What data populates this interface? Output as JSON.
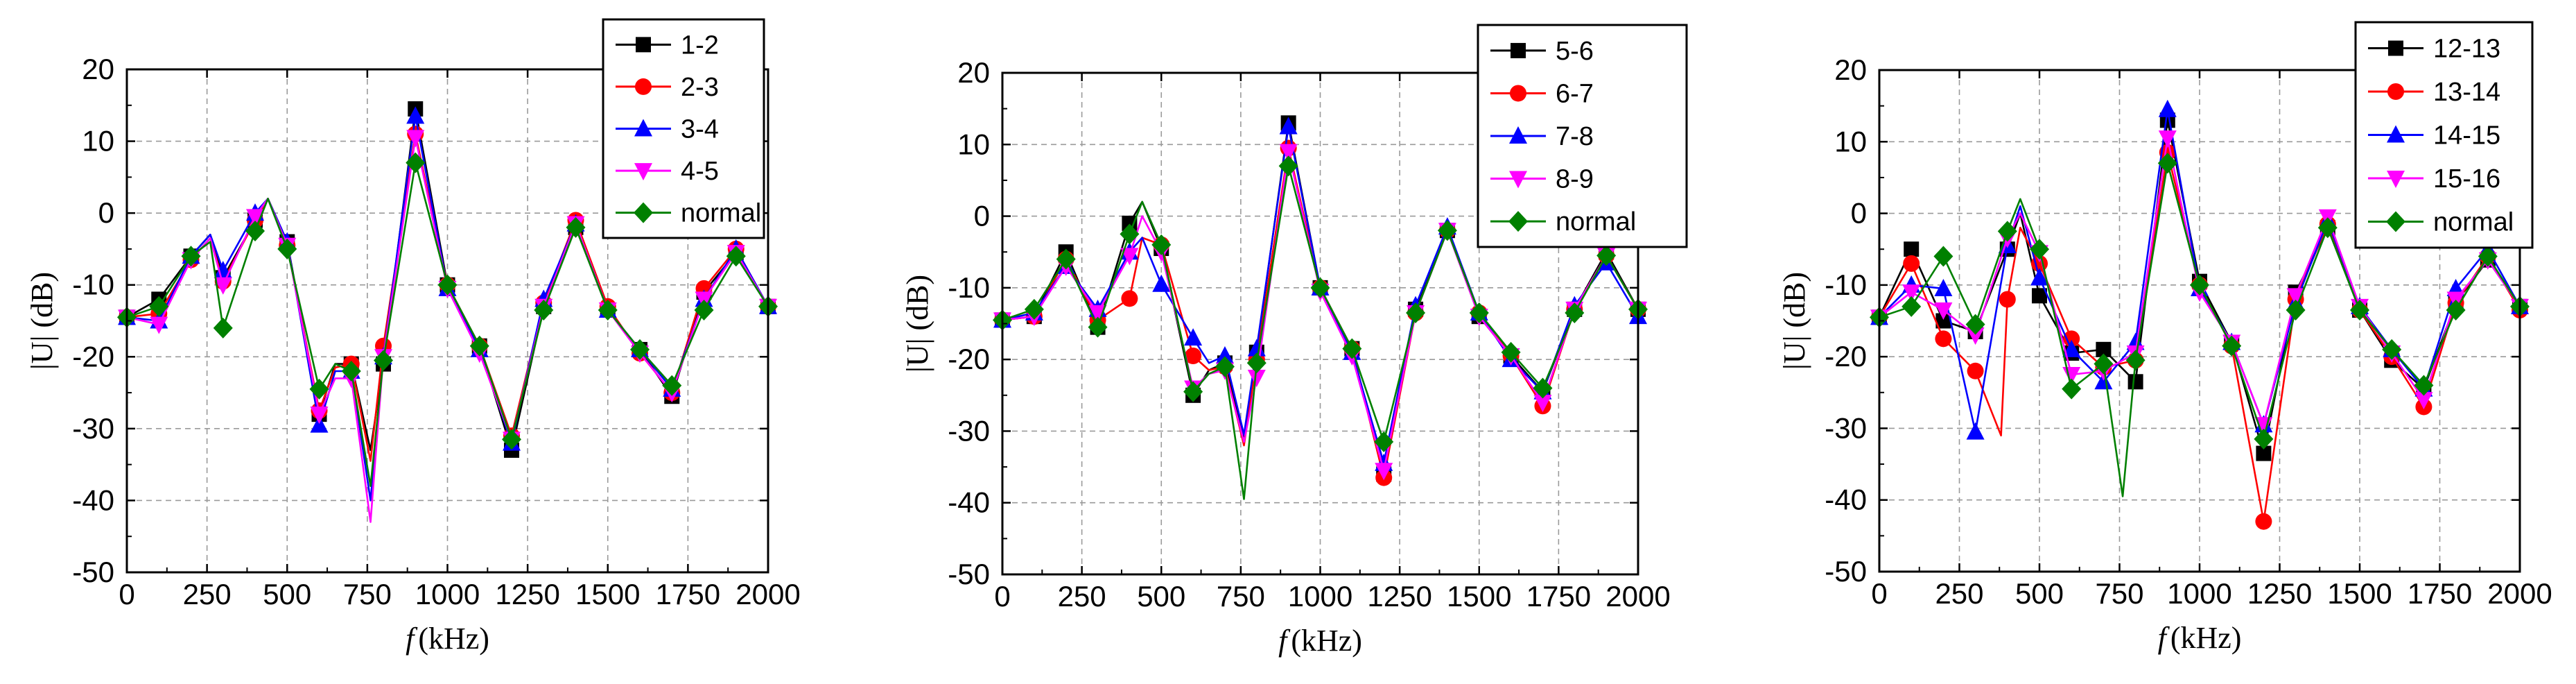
{
  "figure": {
    "panel_count": 3
  },
  "chart_data": [
    {
      "type": "line",
      "title": "",
      "xlabel_italic": "f",
      "xlabel_rest": "(kHz)",
      "ylabel": "|U| (dB)",
      "xlim": [
        0,
        2000
      ],
      "ylim": [
        -50,
        20
      ],
      "xticks": [
        0,
        250,
        500,
        750,
        1000,
        1250,
        1500,
        1750,
        2000
      ],
      "yticks": [
        -50,
        -40,
        -30,
        -20,
        -10,
        0,
        10,
        20
      ],
      "grid": true,
      "legend_position": "top-right",
      "series": [
        {
          "name": "1-2",
          "color": "#000000",
          "marker": "square",
          "x": [
            0,
            100,
            200,
            260,
            300,
            400,
            440,
            500,
            600,
            650,
            700,
            760,
            800,
            900,
            1000,
            1100,
            1200,
            1300,
            1400,
            1500,
            1600,
            1700,
            1800,
            1900,
            2000
          ],
          "y": [
            -14.5,
            -12,
            -6,
            -3,
            -9,
            -1,
            2,
            -4,
            -28,
            -21,
            -21,
            -33,
            -21,
            14.5,
            -10,
            -18.5,
            -33,
            -13,
            -2,
            -13.5,
            -19,
            -25.5,
            -11,
            -5.5,
            -13
          ]
        },
        {
          "name": "2-3",
          "color": "#ff0000",
          "marker": "circle",
          "x": [
            0,
            100,
            200,
            260,
            300,
            400,
            440,
            500,
            600,
            650,
            700,
            760,
            800,
            900,
            1000,
            1100,
            1200,
            1300,
            1400,
            1500,
            1600,
            1700,
            1800,
            1900,
            2000
          ],
          "y": [
            -14.5,
            -14,
            -6.5,
            -3.5,
            -9.5,
            -1,
            2,
            -4.5,
            -27.5,
            -21.5,
            -21,
            -34.5,
            -18.5,
            11,
            -10,
            -18.5,
            -31,
            -12.5,
            -1,
            -13,
            -19.5,
            -25,
            -10.5,
            -5,
            -13
          ]
        },
        {
          "name": "3-4",
          "color": "#0000ff",
          "marker": "triangle-up",
          "x": [
            0,
            100,
            200,
            260,
            300,
            400,
            440,
            500,
            600,
            650,
            700,
            760,
            800,
            900,
            1000,
            1100,
            1200,
            1300,
            1400,
            1500,
            1600,
            1700,
            1800,
            1900,
            2000
          ],
          "y": [
            -14.5,
            -15,
            -6,
            -3,
            -8,
            0,
            2,
            -4,
            -29.5,
            -22,
            -22,
            -40,
            -20,
            13.5,
            -10.5,
            -19,
            -32,
            -12,
            -1.5,
            -13.5,
            -19,
            -24.5,
            -12,
            -5,
            -13
          ]
        },
        {
          "name": "4-5",
          "color": "#ff00ff",
          "marker": "triangle-down",
          "x": [
            0,
            100,
            200,
            260,
            300,
            400,
            440,
            500,
            600,
            650,
            700,
            760,
            800,
            900,
            1000,
            1100,
            1200,
            1300,
            1400,
            1500,
            1600,
            1700,
            1800,
            1900,
            2000
          ],
          "y": [
            -14.5,
            -15.5,
            -6.5,
            -3.5,
            -10,
            -0.5,
            2,
            -4.5,
            -28,
            -23,
            -23,
            -43,
            -20,
            10.5,
            -10.5,
            -19.5,
            -31.5,
            -13,
            -1.5,
            -13.5,
            -19.5,
            -25,
            -12,
            -5.5,
            -13
          ]
        },
        {
          "name": "normal",
          "color": "#008000",
          "marker": "diamond",
          "x": [
            0,
            100,
            200,
            260,
            300,
            400,
            440,
            500,
            600,
            650,
            700,
            760,
            800,
            900,
            1000,
            1100,
            1200,
            1300,
            1400,
            1500,
            1600,
            1700,
            1800,
            1900,
            2000
          ],
          "y": [
            -14.5,
            -13,
            -6,
            -4,
            -16,
            -2.5,
            2,
            -5,
            -24.5,
            -21,
            -22,
            -38,
            -20.5,
            7,
            -10,
            -18.5,
            -31.5,
            -13.5,
            -2,
            -13.5,
            -19,
            -24,
            -13.5,
            -6,
            -13
          ]
        }
      ]
    },
    {
      "type": "line",
      "title": "",
      "xlabel_italic": "f",
      "xlabel_rest": "(kHz)",
      "ylabel": "|U| (dB)",
      "xlim": [
        0,
        2000
      ],
      "ylim": [
        -50,
        20
      ],
      "xticks": [
        0,
        250,
        500,
        750,
        1000,
        1250,
        1500,
        1750,
        2000
      ],
      "yticks": [
        -50,
        -40,
        -30,
        -20,
        -10,
        0,
        10,
        20
      ],
      "grid": true,
      "legend_position": "top-right",
      "series": [
        {
          "name": "5-6",
          "color": "#000000",
          "marker": "square",
          "x": [
            0,
            100,
            200,
            300,
            400,
            440,
            500,
            600,
            650,
            700,
            760,
            800,
            900,
            1000,
            1100,
            1200,
            1300,
            1400,
            1500,
            1600,
            1700,
            1800,
            1900,
            2000
          ],
          "y": [
            -14.5,
            -14,
            -5,
            -15.5,
            -1,
            2,
            -4.5,
            -25,
            -21.5,
            -20.5,
            -31,
            -19,
            13,
            -10,
            -18.5,
            -36,
            -13,
            -2,
            -14,
            -19.5,
            -24.5,
            -13,
            -5,
            -13
          ]
        },
        {
          "name": "6-7",
          "color": "#ff0000",
          "marker": "circle",
          "x": [
            0,
            100,
            200,
            300,
            400,
            440,
            500,
            600,
            650,
            700,
            760,
            800,
            900,
            1000,
            1100,
            1200,
            1300,
            1400,
            1500,
            1600,
            1700,
            1800,
            1900,
            2000
          ],
          "y": [
            -14.5,
            -14,
            -6,
            -14.5,
            -11.5,
            -3,
            -4,
            -19.5,
            -21.5,
            -21,
            -32,
            -20,
            9.5,
            -10,
            -18.5,
            -36.5,
            -13.5,
            -2,
            -13.5,
            -19.5,
            -26.5,
            -13,
            -5.5,
            -13
          ]
        },
        {
          "name": "7-8",
          "color": "#0000ff",
          "marker": "triangle-up",
          "x": [
            0,
            100,
            200,
            300,
            400,
            440,
            500,
            600,
            650,
            700,
            760,
            800,
            900,
            1000,
            1100,
            1200,
            1300,
            1400,
            1500,
            1600,
            1700,
            1800,
            1900,
            2000
          ],
          "y": [
            -14.5,
            -13.5,
            -7,
            -13,
            -5,
            -3,
            -9.5,
            -17,
            -20.5,
            -19.5,
            -30.5,
            -18.5,
            12.5,
            -10,
            -19,
            -34.5,
            -12.5,
            -1.5,
            -13.5,
            -20,
            -24.5,
            -12.5,
            -6.5,
            -14
          ]
        },
        {
          "name": "8-9",
          "color": "#ff00ff",
          "marker": "triangle-down",
          "x": [
            0,
            100,
            200,
            300,
            400,
            440,
            500,
            600,
            650,
            700,
            760,
            800,
            900,
            1000,
            1100,
            1200,
            1300,
            1400,
            1500,
            1600,
            1700,
            1800,
            1900,
            2000
          ],
          "y": [
            -14.5,
            -14,
            -7,
            -13.5,
            -5.5,
            0,
            -5,
            -24,
            -22,
            -21.5,
            -31.5,
            -22.5,
            9,
            -10.5,
            -19.5,
            -35.5,
            -13.5,
            -2,
            -14,
            -19.5,
            -26,
            -13,
            -5.5,
            -13
          ]
        },
        {
          "name": "normal",
          "color": "#008000",
          "marker": "diamond",
          "x": [
            0,
            100,
            200,
            300,
            400,
            440,
            500,
            600,
            650,
            700,
            760,
            800,
            900,
            1000,
            1100,
            1200,
            1300,
            1400,
            1500,
            1600,
            1700,
            1800,
            1900,
            2000
          ],
          "y": [
            -14.5,
            -13,
            -6,
            -15.5,
            -2.5,
            2,
            -4,
            -24.5,
            -22,
            -21,
            -39.5,
            -20.5,
            7,
            -10,
            -18.5,
            -31.5,
            -13.5,
            -2,
            -13.5,
            -19,
            -24,
            -13.5,
            -5.5,
            -13
          ]
        }
      ]
    },
    {
      "type": "line",
      "title": "",
      "xlabel_italic": "f",
      "xlabel_rest": "(kHz)",
      "ylabel": "|U| (dB)",
      "xlim": [
        0,
        2000
      ],
      "ylim": [
        -50,
        20
      ],
      "xticks": [
        0,
        250,
        500,
        750,
        1000,
        1250,
        1500,
        1750,
        2000
      ],
      "yticks": [
        -50,
        -40,
        -30,
        -20,
        -10,
        0,
        10,
        20
      ],
      "grid": true,
      "legend_position": "top-right",
      "series": [
        {
          "name": "12-13",
          "color": "#000000",
          "marker": "square",
          "x": [
            0,
            100,
            200,
            300,
            400,
            440,
            500,
            600,
            700,
            800,
            900,
            1000,
            1100,
            1200,
            1300,
            1400,
            1500,
            1600,
            1700,
            1800,
            1900,
            2000
          ],
          "y": [
            -14.5,
            -5,
            -15,
            -16.5,
            -5,
            0,
            -11.5,
            -19.5,
            -19,
            -23.5,
            13,
            -9.5,
            -18,
            -33.5,
            -11,
            -2,
            -13.5,
            -20.5,
            -24.5,
            -12.5,
            -6.5,
            -13
          ]
        },
        {
          "name": "13-14",
          "color": "#ff0000",
          "marker": "circle",
          "x": [
            0,
            100,
            200,
            300,
            380,
            400,
            440,
            500,
            600,
            700,
            800,
            900,
            1000,
            1100,
            1200,
            1300,
            1400,
            1500,
            1600,
            1700,
            1800,
            1900,
            2000
          ],
          "y": [
            -14.5,
            -7,
            -17.5,
            -22,
            -31,
            -12,
            -2,
            -7,
            -17.5,
            -21.5,
            -20.5,
            8.5,
            -10,
            -18.5,
            -43,
            -12,
            -1.5,
            -13.5,
            -20,
            -27,
            -12.5,
            -6,
            -13.5
          ]
        },
        {
          "name": "14-15",
          "color": "#0000ff",
          "marker": "triangle-up",
          "x": [
            0,
            100,
            200,
            300,
            400,
            440,
            500,
            600,
            700,
            800,
            900,
            1000,
            1100,
            1200,
            1300,
            1400,
            1500,
            1600,
            1700,
            1800,
            1900,
            2000
          ],
          "y": [
            -14.5,
            -10,
            -10.5,
            -30.5,
            -4.5,
            1,
            -9,
            -19,
            -23.5,
            -18,
            14.5,
            -10.5,
            -18,
            -29.5,
            -12.5,
            -1,
            -13,
            -19,
            -24.5,
            -10.5,
            -5,
            -13
          ]
        },
        {
          "name": "15-16",
          "color": "#ff00ff",
          "marker": "triangle-down",
          "x": [
            0,
            100,
            200,
            300,
            400,
            440,
            500,
            600,
            700,
            800,
            900,
            1000,
            1100,
            1200,
            1300,
            1400,
            1500,
            1600,
            1700,
            1800,
            1900,
            2000
          ],
          "y": [
            -14.5,
            -11,
            -13.5,
            -17,
            -3.5,
            0,
            -5.5,
            -22.5,
            -22,
            -19.5,
            10.5,
            -11,
            -18,
            -29.5,
            -11.5,
            -0.5,
            -13,
            -19.5,
            -26,
            -12,
            -6.5,
            -13
          ]
        },
        {
          "name": "normal",
          "color": "#008000",
          "marker": "diamond",
          "x": [
            0,
            100,
            200,
            300,
            400,
            440,
            500,
            600,
            700,
            760,
            800,
            900,
            1000,
            1100,
            1200,
            1300,
            1400,
            1500,
            1600,
            1700,
            1800,
            1900,
            2000
          ],
          "y": [
            -14.5,
            -13,
            -6,
            -15.5,
            -2.5,
            2,
            -5,
            -24.5,
            -21,
            -39.5,
            -20.5,
            7,
            -10,
            -18.5,
            -31.5,
            -13.5,
            -2,
            -13.5,
            -19,
            -24,
            -13.5,
            -6,
            -13
          ]
        }
      ]
    }
  ]
}
